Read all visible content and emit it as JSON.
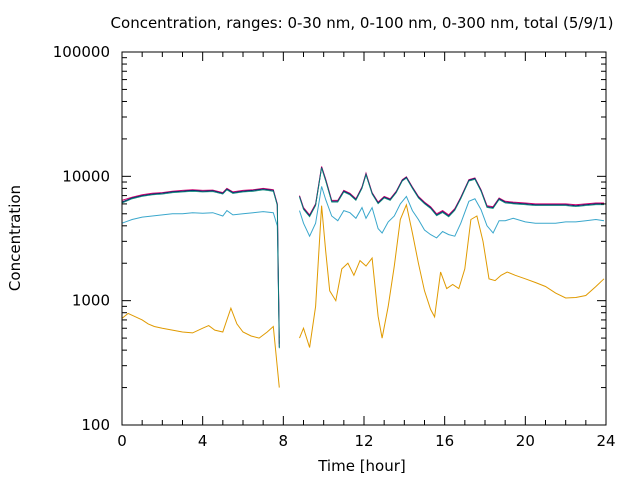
{
  "chart_data": {
    "type": "line",
    "title": "Concentration, ranges: 0-30 nm, 0-100 nm, 0-300 nm, total (5/9/1)",
    "xlabel": "Time [hour]",
    "ylabel": "Concentration",
    "xlim": [
      0,
      24
    ],
    "ylim": [
      100,
      100000
    ],
    "yscale": "log",
    "x_ticks": [
      0,
      4,
      8,
      12,
      16,
      20,
      24
    ],
    "x_tick_labels": [
      "0",
      "4",
      "8",
      "12",
      "16",
      "20",
      "24"
    ],
    "y_ticks": [
      100,
      1000,
      10000,
      100000
    ],
    "y_tick_labels": [
      "100",
      "1000",
      "10000",
      "100000"
    ],
    "grid": false,
    "colors": {
      "total": "#0a2a6b",
      "range_0_300": "#d4006e",
      "range_0_100": "#3aa7cc",
      "range_0_30": "#e09a00",
      "teal_overlay": "#0b8a7a"
    },
    "series": [
      {
        "key": "range_0_30",
        "segments": [
          [
            [
              0,
              720
            ],
            [
              0.3,
              790
            ],
            [
              0.6,
              750
            ],
            [
              1.0,
              700
            ],
            [
              1.3,
              650
            ],
            [
              1.6,
              620
            ],
            [
              2.0,
              600
            ],
            [
              2.5,
              580
            ],
            [
              3.0,
              560
            ],
            [
              3.5,
              550
            ],
            [
              4.0,
              600
            ],
            [
              4.3,
              630
            ],
            [
              4.6,
              580
            ],
            [
              5.0,
              560
            ],
            [
              5.2,
              700
            ],
            [
              5.4,
              870
            ],
            [
              5.7,
              650
            ],
            [
              6.0,
              560
            ],
            [
              6.4,
              520
            ],
            [
              6.8,
              500
            ],
            [
              7.2,
              560
            ],
            [
              7.5,
              620
            ],
            [
              7.8,
              200
            ]
          ],
          [
            [
              8.8,
              500
            ],
            [
              9.0,
              600
            ],
            [
              9.3,
              420
            ],
            [
              9.6,
              900
            ],
            [
              9.9,
              5800
            ],
            [
              10.1,
              2500
            ],
            [
              10.3,
              1200
            ],
            [
              10.6,
              1000
            ],
            [
              10.9,
              1800
            ],
            [
              11.2,
              2000
            ],
            [
              11.5,
              1600
            ],
            [
              11.8,
              2100
            ],
            [
              12.1,
              1900
            ],
            [
              12.4,
              2200
            ],
            [
              12.7,
              750
            ],
            [
              12.9,
              500
            ],
            [
              13.2,
              900
            ],
            [
              13.5,
              1900
            ],
            [
              13.8,
              4500
            ],
            [
              14.1,
              5900
            ],
            [
              14.4,
              3500
            ],
            [
              14.7,
              2000
            ],
            [
              15.0,
              1200
            ],
            [
              15.3,
              850
            ],
            [
              15.5,
              740
            ],
            [
              15.8,
              1700
            ],
            [
              16.1,
              1250
            ],
            [
              16.4,
              1350
            ],
            [
              16.7,
              1250
            ],
            [
              17.0,
              1800
            ],
            [
              17.3,
              4500
            ],
            [
              17.6,
              4800
            ],
            [
              17.9,
              3000
            ],
            [
              18.2,
              1500
            ],
            [
              18.5,
              1450
            ],
            [
              18.8,
              1600
            ],
            [
              19.1,
              1700
            ],
            [
              19.5,
              1600
            ],
            [
              20.0,
              1500
            ],
            [
              20.5,
              1400
            ],
            [
              21.0,
              1300
            ],
            [
              21.5,
              1150
            ],
            [
              22.0,
              1050
            ],
            [
              22.5,
              1060
            ],
            [
              23.0,
              1100
            ],
            [
              23.5,
              1300
            ],
            [
              23.9,
              1500
            ]
          ]
        ]
      },
      {
        "key": "range_0_100",
        "segments": [
          [
            [
              0,
              4200
            ],
            [
              0.5,
              4500
            ],
            [
              1.0,
              4700
            ],
            [
              1.5,
              4800
            ],
            [
              2.0,
              4900
            ],
            [
              2.5,
              5000
            ],
            [
              3.0,
              5000
            ],
            [
              3.5,
              5100
            ],
            [
              4.0,
              5050
            ],
            [
              4.5,
              5100
            ],
            [
              5.0,
              4800
            ],
            [
              5.2,
              5300
            ],
            [
              5.5,
              4900
            ],
            [
              6.0,
              5000
            ],
            [
              6.5,
              5100
            ],
            [
              7.0,
              5200
            ],
            [
              7.5,
              5100
            ],
            [
              7.7,
              4000
            ],
            [
              7.8,
              500
            ]
          ],
          [
            [
              8.8,
              5300
            ],
            [
              9.0,
              4200
            ],
            [
              9.3,
              3300
            ],
            [
              9.6,
              4200
            ],
            [
              9.9,
              8300
            ],
            [
              10.1,
              6500
            ],
            [
              10.4,
              4800
            ],
            [
              10.7,
              4400
            ],
            [
              11.0,
              5300
            ],
            [
              11.3,
              5100
            ],
            [
              11.6,
              4600
            ],
            [
              11.9,
              5600
            ],
            [
              12.1,
              4600
            ],
            [
              12.4,
              5600
            ],
            [
              12.7,
              3800
            ],
            [
              12.9,
              3500
            ],
            [
              13.2,
              4300
            ],
            [
              13.5,
              4800
            ],
            [
              13.8,
              6000
            ],
            [
              14.1,
              6900
            ],
            [
              14.4,
              5300
            ],
            [
              14.7,
              4500
            ],
            [
              15.0,
              3700
            ],
            [
              15.3,
              3400
            ],
            [
              15.6,
              3200
            ],
            [
              15.9,
              3600
            ],
            [
              16.2,
              3400
            ],
            [
              16.5,
              3300
            ],
            [
              16.8,
              4200
            ],
            [
              17.2,
              6300
            ],
            [
              17.5,
              6600
            ],
            [
              17.8,
              5400
            ],
            [
              18.1,
              4000
            ],
            [
              18.4,
              3500
            ],
            [
              18.7,
              4400
            ],
            [
              19.0,
              4400
            ],
            [
              19.4,
              4600
            ],
            [
              20.0,
              4300
            ],
            [
              20.5,
              4200
            ],
            [
              21.0,
              4200
            ],
            [
              21.5,
              4200
            ],
            [
              22.0,
              4300
            ],
            [
              22.5,
              4300
            ],
            [
              23.0,
              4400
            ],
            [
              23.5,
              4500
            ],
            [
              23.9,
              4400
            ]
          ]
        ]
      },
      {
        "key": "range_0_300",
        "segments": [
          [
            [
              0,
              6400
            ],
            [
              0.5,
              6800
            ],
            [
              1.0,
              7100
            ],
            [
              1.5,
              7300
            ],
            [
              2.0,
              7400
            ],
            [
              2.5,
              7600
            ],
            [
              3.0,
              7700
            ],
            [
              3.5,
              7800
            ],
            [
              4.0,
              7700
            ],
            [
              4.5,
              7750
            ],
            [
              5.0,
              7400
            ],
            [
              5.2,
              8000
            ],
            [
              5.5,
              7500
            ],
            [
              6.0,
              7700
            ],
            [
              6.5,
              7800
            ],
            [
              7.0,
              8000
            ],
            [
              7.5,
              7800
            ],
            [
              7.7,
              6000
            ],
            [
              7.8,
              450
            ]
          ],
          [
            [
              8.8,
              7000
            ],
            [
              9.0,
              5600
            ],
            [
              9.3,
              4900
            ],
            [
              9.6,
              6000
            ],
            [
              9.9,
              12000
            ],
            [
              10.1,
              9500
            ],
            [
              10.4,
              6400
            ],
            [
              10.7,
              6400
            ],
            [
              11.0,
              7700
            ],
            [
              11.3,
              7300
            ],
            [
              11.6,
              6600
            ],
            [
              11.9,
              8200
            ],
            [
              12.1,
              10600
            ],
            [
              12.4,
              7400
            ],
            [
              12.7,
              6200
            ],
            [
              13.0,
              6900
            ],
            [
              13.3,
              6600
            ],
            [
              13.6,
              7600
            ],
            [
              13.9,
              9400
            ],
            [
              14.1,
              9900
            ],
            [
              14.4,
              8200
            ],
            [
              14.7,
              6900
            ],
            [
              15.0,
              6200
            ],
            [
              15.3,
              5700
            ],
            [
              15.6,
              5000
            ],
            [
              15.9,
              5300
            ],
            [
              16.2,
              4900
            ],
            [
              16.5,
              5500
            ],
            [
              16.8,
              6800
            ],
            [
              17.2,
              9400
            ],
            [
              17.5,
              9700
            ],
            [
              17.8,
              7800
            ],
            [
              18.1,
              5800
            ],
            [
              18.4,
              5700
            ],
            [
              18.7,
              6700
            ],
            [
              19.0,
              6300
            ],
            [
              19.4,
              6200
            ],
            [
              20.0,
              6100
            ],
            [
              20.5,
              6000
            ],
            [
              21.0,
              6000
            ],
            [
              21.5,
              6000
            ],
            [
              22.0,
              6000
            ],
            [
              22.5,
              5900
            ],
            [
              23.0,
              6000
            ],
            [
              23.5,
              6100
            ],
            [
              23.9,
              6100
            ]
          ]
        ]
      },
      {
        "key": "total",
        "segments": [
          [
            [
              0,
              6200
            ],
            [
              0.5,
              6700
            ],
            [
              1.0,
              7000
            ],
            [
              1.5,
              7200
            ],
            [
              2.0,
              7300
            ],
            [
              2.5,
              7500
            ],
            [
              3.0,
              7600
            ],
            [
              3.5,
              7700
            ],
            [
              4.0,
              7600
            ],
            [
              4.5,
              7650
            ],
            [
              5.0,
              7300
            ],
            [
              5.2,
              7900
            ],
            [
              5.5,
              7400
            ],
            [
              6.0,
              7600
            ],
            [
              6.5,
              7700
            ],
            [
              7.0,
              7900
            ],
            [
              7.5,
              7700
            ],
            [
              7.7,
              5900
            ],
            [
              7.8,
              420
            ]
          ],
          [
            [
              8.8,
              6900
            ],
            [
              9.0,
              5500
            ],
            [
              9.3,
              4800
            ],
            [
              9.6,
              5900
            ],
            [
              9.9,
              11800
            ],
            [
              10.1,
              9300
            ],
            [
              10.4,
              6300
            ],
            [
              10.7,
              6300
            ],
            [
              11.0,
              7600
            ],
            [
              11.3,
              7200
            ],
            [
              11.6,
              6500
            ],
            [
              11.9,
              8100
            ],
            [
              12.1,
              10400
            ],
            [
              12.4,
              7300
            ],
            [
              12.7,
              6100
            ],
            [
              13.0,
              6800
            ],
            [
              13.3,
              6500
            ],
            [
              13.6,
              7500
            ],
            [
              13.9,
              9300
            ],
            [
              14.1,
              9800
            ],
            [
              14.4,
              8100
            ],
            [
              14.7,
              6800
            ],
            [
              15.0,
              6100
            ],
            [
              15.3,
              5600
            ],
            [
              15.6,
              4900
            ],
            [
              15.9,
              5200
            ],
            [
              16.2,
              4800
            ],
            [
              16.5,
              5400
            ],
            [
              16.8,
              6700
            ],
            [
              17.2,
              9300
            ],
            [
              17.5,
              9600
            ],
            [
              17.8,
              7700
            ],
            [
              18.1,
              5700
            ],
            [
              18.4,
              5600
            ],
            [
              18.7,
              6600
            ],
            [
              19.0,
              6200
            ],
            [
              19.4,
              6100
            ],
            [
              20.0,
              6000
            ],
            [
              20.5,
              5900
            ],
            [
              21.0,
              5900
            ],
            [
              21.5,
              5900
            ],
            [
              22.0,
              5900
            ],
            [
              22.5,
              5800
            ],
            [
              23.0,
              5900
            ],
            [
              23.5,
              6000
            ],
            [
              23.9,
              6000
            ]
          ]
        ]
      }
    ]
  }
}
